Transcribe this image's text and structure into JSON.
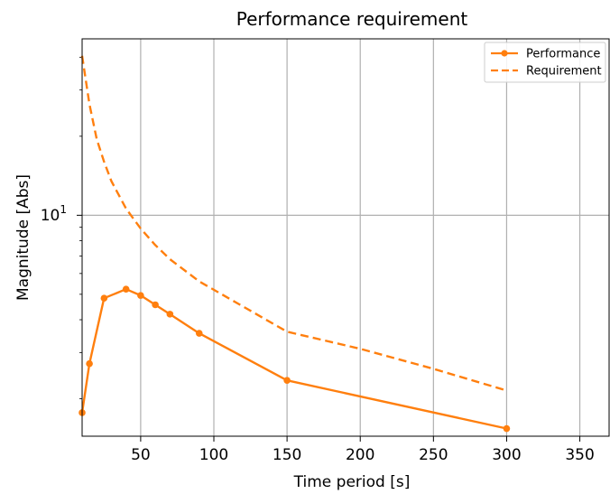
{
  "chart_data": {
    "type": "line",
    "title": "Performance requirement",
    "xlabel": "Time period [s]",
    "ylabel": "Magnitude [Abs]",
    "xlim": [
      10,
      370
    ],
    "ylim": [
      1.44,
      47
    ],
    "yscale": "log",
    "grid": true,
    "legend_position": "top-right",
    "x_ticks": [
      50,
      100,
      150,
      200,
      250,
      300,
      350
    ],
    "x_tick_labels": [
      "50",
      "100",
      "150",
      "200",
      "250",
      "300",
      "350"
    ],
    "y_major_ticks": [
      10
    ],
    "y_major_tick_base": "10",
    "y_major_tick_exponent": "1",
    "y_minor_ticks": [
      2,
      3,
      4,
      5,
      6,
      7,
      8,
      9,
      20,
      30,
      40
    ],
    "series": [
      {
        "name": "Performance",
        "style": "solid",
        "marker": "circle",
        "color": "#ff7f0e",
        "x": [
          10,
          15,
          25,
          40,
          50,
          60,
          70,
          90,
          150,
          300
        ],
        "y": [
          1.77,
          2.72,
          4.83,
          5.23,
          4.95,
          4.56,
          4.2,
          3.55,
          2.35,
          1.54
        ]
      },
      {
        "name": "Requirement",
        "style": "dashed",
        "marker": "none",
        "color": "#ff7f0e",
        "x": [
          10,
          15,
          20,
          25,
          30,
          40,
          50,
          60,
          70,
          90,
          150,
          200,
          250,
          300
        ],
        "y": [
          40.5,
          26.5,
          19.5,
          16.0,
          13.5,
          10.6,
          8.9,
          7.7,
          6.8,
          5.6,
          3.6,
          3.1,
          2.6,
          2.15
        ]
      }
    ]
  }
}
